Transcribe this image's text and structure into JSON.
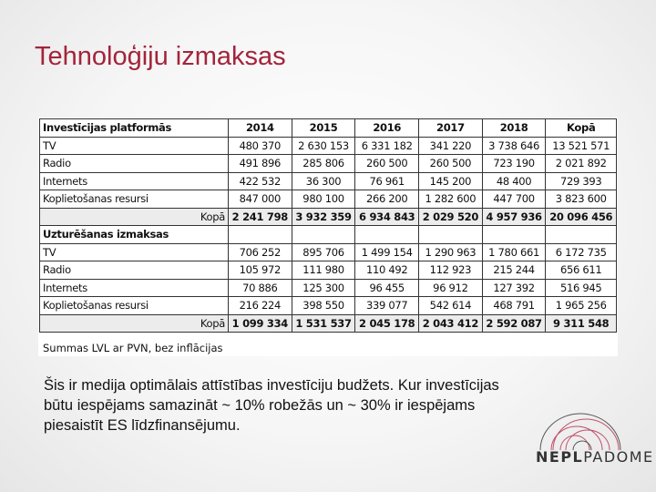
{
  "title": "Tehnoloģiju izmaksas",
  "table": {
    "sections": [
      {
        "header": "Investīcijas platformās",
        "columns": [
          "2014",
          "2015",
          "2016",
          "2017",
          "2018",
          "Kopā"
        ],
        "rows": [
          {
            "label": "TV",
            "values": [
              "480 370",
              "2 630 153",
              "6 331 182",
              "341 220",
              "3 738 646",
              "13 521 571"
            ]
          },
          {
            "label": "Radio",
            "values": [
              "491 896",
              "285 806",
              "260 500",
              "260 500",
              "723 190",
              "2 021 892"
            ]
          },
          {
            "label": "Internets",
            "values": [
              "422 532",
              "36 300",
              "76 961",
              "145 200",
              "48 400",
              "729 393"
            ]
          },
          {
            "label": "Koplietošanas resursi",
            "values": [
              "847 000",
              "980 100",
              "266 200",
              "1 282 600",
              "447 700",
              "3 823 600"
            ]
          }
        ],
        "total": {
          "label": "Kopā",
          "values": [
            "2 241 798",
            "3 932 359",
            "6 934 843",
            "2 029 520",
            "4 957 936",
            "20 096 456"
          ]
        }
      },
      {
        "header": "Uzturēšanas izmaksas",
        "columns": [
          "",
          "",
          "",
          "",
          "",
          ""
        ],
        "rows": [
          {
            "label": "TV",
            "values": [
              "706 252",
              "895 706",
              "1 499 154",
              "1 290 963",
              "1 780 661",
              "6 172 735"
            ]
          },
          {
            "label": "Radio",
            "values": [
              "105 972",
              "111 980",
              "110 492",
              "112 923",
              "215 244",
              "656 611"
            ]
          },
          {
            "label": "Internets",
            "values": [
              "70 886",
              "125 300",
              "96 455",
              "96 912",
              "127 392",
              "516 945"
            ]
          },
          {
            "label": "Koplietošanas resursi",
            "values": [
              "216 224",
              "398 550",
              "339 077",
              "542 614",
              "468 791",
              "1 965 256"
            ]
          }
        ],
        "total": {
          "label": "Kopā",
          "values": [
            "1 099 334",
            "1 531 537",
            "2 045 178",
            "2 043 412",
            "2 592 087",
            "9 311 548"
          ]
        }
      }
    ],
    "note": "Summas LVL ar PVN, bez inflācijas"
  },
  "body_text": "Šis ir medija optimālais attīstības investīciju budžets. Kur investīcijas būtu iespējams samazināt ~ 10% robežās un ~ 30% ir iespējams piesaistīt ES līdzfinansējumu.",
  "logo": {
    "text_bold": "NEPL",
    "text_regular": "PADOME"
  },
  "colors": {
    "title": "#a3243b",
    "logo_arc_red": "#c0506a",
    "logo_arc_gray": "#555555"
  }
}
